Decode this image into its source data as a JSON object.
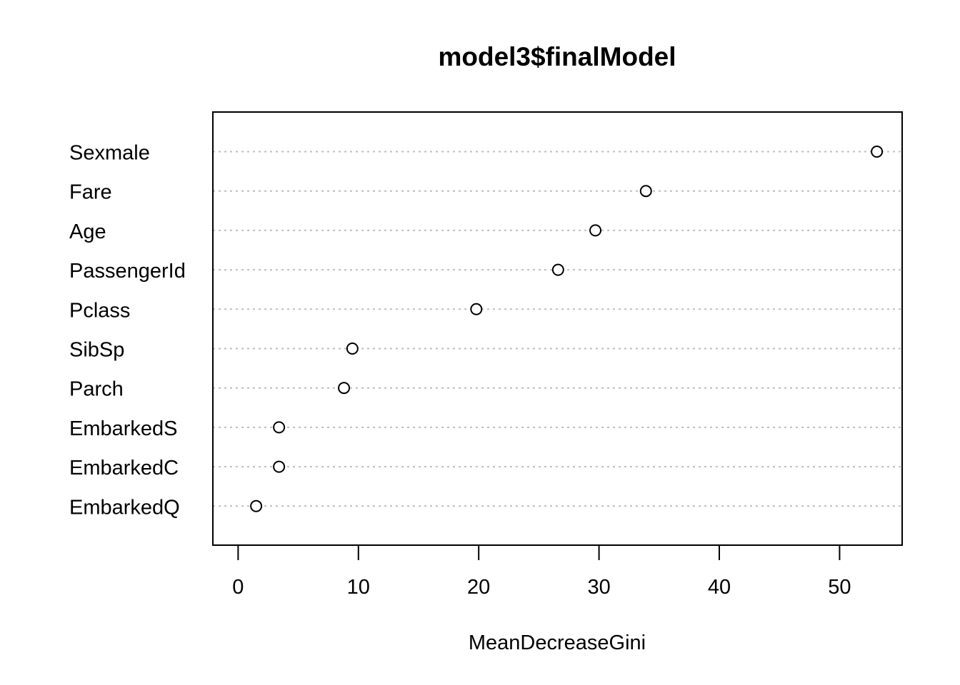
{
  "chart_data": {
    "type": "scatter",
    "subtype": "dotchart",
    "title": "model3$finalModel",
    "xlabel": "MeanDecreaseGini",
    "ylabel": "",
    "xlim": [
      -2.1,
      55.2
    ],
    "xticks": [
      0,
      10,
      20,
      30,
      40,
      50
    ],
    "grid": "horizontal-dotted",
    "categories": [
      "Sexmale",
      "Fare",
      "Age",
      "PassengerId",
      "Pclass",
      "SibSp",
      "Parch",
      "EmbarkedS",
      "EmbarkedC",
      "EmbarkedQ"
    ],
    "values": [
      53.1,
      33.9,
      29.7,
      26.6,
      19.8,
      9.5,
      8.8,
      3.4,
      3.4,
      1.5
    ]
  },
  "colors": {
    "background": "#ffffff",
    "foreground": "#000000",
    "grid": "#bebebe",
    "point_fill": "#ffffff"
  }
}
